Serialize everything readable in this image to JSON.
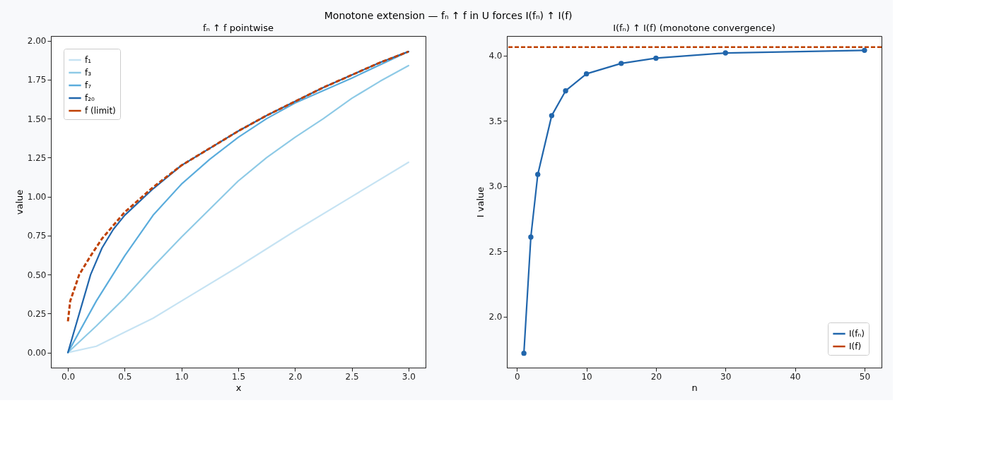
{
  "chart_data": [
    {
      "type": "line",
      "annotations": [
        "Monotone extension — fₙ ↑ f in U forces I(fₙ) ↑ I(f)"
      ],
      "title": "fₙ ↑ f pointwise",
      "xlabel": "x",
      "ylabel": "value",
      "xlim": [
        -0.15,
        3.15
      ],
      "ylim": [
        -0.097,
        2.03
      ],
      "xticks": [
        {
          "value": 0,
          "label": "0.0"
        },
        0.5,
        {
          "value": 1,
          "label": "1.0"
        },
        1.5,
        {
          "value": 2,
          "label": "2.0"
        },
        2.5,
        {
          "value": 3,
          "label": "3.0"
        }
      ],
      "yticks": [
        {
          "value": 0,
          "label": "0.00"
        },
        0.25,
        {
          "value": 0.5,
          "label": "0.50"
        },
        0.75,
        {
          "value": 1,
          "label": "1.00"
        },
        1.25,
        {
          "value": 1.5,
          "label": "1.50"
        },
        1.75,
        {
          "value": 2,
          "label": "2.00"
        }
      ],
      "grid": false,
      "legend": "top left",
      "marker": "none",
      "series": [
        {
          "name": "f₁",
          "color": "#c6e3f3",
          "line_style": "solid",
          "x": [
            0,
            0.25,
            0.5,
            0.75,
            1,
            1.5,
            2,
            2.5,
            3
          ],
          "values": [
            0,
            0.04,
            0.13,
            0.22,
            0.33,
            0.55,
            0.78,
            1.0,
            1.22
          ]
        },
        {
          "name": "f₃",
          "color": "#8ecae6",
          "line_style": "solid",
          "x": [
            0,
            0.25,
            0.5,
            0.75,
            1,
            1.25,
            1.5,
            1.75,
            2,
            2.25,
            2.5,
            2.75,
            3
          ],
          "values": [
            0,
            0.17,
            0.35,
            0.55,
            0.74,
            0.92,
            1.1,
            1.25,
            1.38,
            1.5,
            1.63,
            1.74,
            1.84
          ]
        },
        {
          "name": "f₇",
          "color": "#5aacdc",
          "line_style": "solid",
          "x": [
            0,
            0.25,
            0.5,
            0.75,
            1,
            1.25,
            1.5,
            1.75,
            2,
            2.5,
            3
          ],
          "values": [
            0,
            0.33,
            0.62,
            0.88,
            1.08,
            1.24,
            1.38,
            1.5,
            1.6,
            1.76,
            1.93
          ]
        },
        {
          "name": "f₂₀",
          "color": "#2166ac",
          "line_style": "solid",
          "x": [
            0,
            0.1,
            0.2,
            0.3,
            0.4,
            0.5,
            0.75,
            1,
            1.25,
            1.5,
            1.75,
            2,
            2.25,
            2.5,
            2.75,
            3
          ],
          "values": [
            0,
            0.25,
            0.5,
            0.67,
            0.79,
            0.88,
            1.05,
            1.2,
            1.31,
            1.42,
            1.52,
            1.61,
            1.7,
            1.78,
            1.86,
            1.93
          ]
        },
        {
          "name": "f (limit)",
          "color": "#bf4000",
          "line_style": "dashed",
          "x": [
            0,
            0.02,
            0.1,
            0.2,
            0.3,
            0.5,
            0.75,
            1,
            1.25,
            1.5,
            1.75,
            2,
            2.25,
            2.5,
            2.75,
            3
          ],
          "values": [
            0.2,
            0.33,
            0.5,
            0.62,
            0.73,
            0.9,
            1.06,
            1.2,
            1.31,
            1.42,
            1.52,
            1.61,
            1.7,
            1.78,
            1.86,
            1.93
          ]
        }
      ]
    },
    {
      "type": "line",
      "title": "I(fₙ) ↑ I(f) (monotone convergence)",
      "xlabel": "n",
      "ylabel": "I value",
      "xlim": [
        -1.45,
        52.45
      ],
      "ylim": [
        1.61,
        4.15
      ],
      "xticks": [
        0,
        10,
        20,
        30,
        40,
        50
      ],
      "yticks": [
        {
          "value": 2,
          "label": "2.0"
        },
        2.5,
        {
          "value": 3,
          "label": "3.0"
        },
        3.5,
        {
          "value": 4,
          "label": "4.0"
        }
      ],
      "grid": false,
      "legend": "bottom right",
      "marker": "circle",
      "series": [
        {
          "name": "I(fₙ)",
          "color": "#2166ac",
          "line_style": "solid",
          "x": [
            1,
            2,
            3,
            5,
            7,
            10,
            15,
            20,
            30,
            50
          ],
          "values": [
            1.72,
            2.61,
            3.09,
            3.54,
            3.73,
            3.86,
            3.94,
            3.98,
            4.02,
            4.04
          ]
        }
      ],
      "ref_lines": [
        {
          "axis": "y",
          "value": 4.065,
          "label": "I(f)",
          "color": "#bf4000",
          "line_style": "dashed"
        }
      ]
    }
  ]
}
